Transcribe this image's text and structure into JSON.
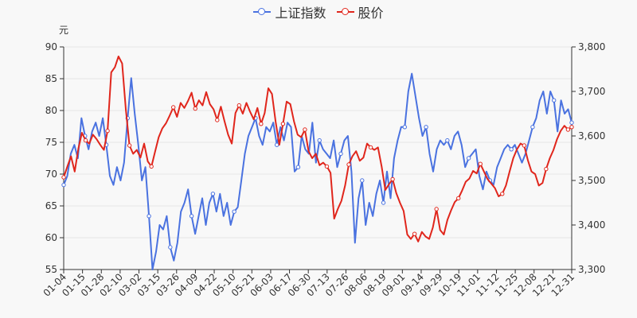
{
  "chart_data": {
    "type": "line",
    "unit_left": "元",
    "legend": [
      "上证指数",
      "股价"
    ],
    "colors": {
      "index": "#4a72e0",
      "price": "#e0261c",
      "axis": "#333333",
      "grid": "#e6e6e6",
      "text": "#333333"
    },
    "x_tick_labels": [
      "01-04",
      "01-15",
      "01-28",
      "02-10",
      "03-02",
      "03-15",
      "03-26",
      "04-09",
      "04-22",
      "05-10",
      "05-21",
      "06-03",
      "06-17",
      "06-30",
      "07-13",
      "07-26",
      "08-06",
      "08-19",
      "09-01",
      "09-14",
      "09-29",
      "10-19",
      "11-01",
      "11-12",
      "11-25",
      "12-08",
      "12-21",
      "12-31"
    ],
    "y_left": {
      "min": 55,
      "max": 90,
      "ticks": [
        55,
        60,
        65,
        70,
        75,
        80,
        85,
        90
      ]
    },
    "y_right": {
      "min": 3300,
      "max": 3800,
      "ticks": [
        "3,300",
        "3,400",
        "3,500",
        "3,600",
        "3,700",
        "3,800"
      ],
      "tick_values": [
        3300,
        3400,
        3500,
        3600,
        3700,
        3800
      ]
    },
    "series": [
      {
        "name": "上证指数",
        "axis": "right",
        "values": [
          3490,
          3510,
          3560,
          3580,
          3550,
          3640,
          3600,
          3570,
          3610,
          3630,
          3600,
          3640,
          3580,
          3510,
          3490,
          3530,
          3500,
          3540,
          3640,
          3730,
          3650,
          3580,
          3500,
          3530,
          3420,
          3300,
          3340,
          3400,
          3390,
          3420,
          3350,
          3320,
          3360,
          3430,
          3450,
          3480,
          3420,
          3380,
          3420,
          3460,
          3400,
          3450,
          3470,
          3430,
          3470,
          3420,
          3450,
          3400,
          3430,
          3440,
          3500,
          3560,
          3600,
          3620,
          3640,
          3600,
          3580,
          3620,
          3610,
          3630,
          3580,
          3620,
          3590,
          3630,
          3620,
          3520,
          3530,
          3600,
          3570,
          3560,
          3630,
          3540,
          3590,
          3570,
          3560,
          3550,
          3590,
          3530,
          3560,
          3590,
          3600,
          3520,
          3360,
          3460,
          3500,
          3400,
          3450,
          3420,
          3470,
          3500,
          3450,
          3520,
          3460,
          3550,
          3590,
          3620,
          3620,
          3700,
          3740,
          3690,
          3640,
          3600,
          3620,
          3560,
          3520,
          3570,
          3590,
          3580,
          3590,
          3570,
          3600,
          3610,
          3580,
          3530,
          3550,
          3560,
          3570,
          3510,
          3480,
          3520,
          3500,
          3490,
          3530,
          3550,
          3570,
          3580,
          3570,
          3580,
          3560,
          3540,
          3560,
          3590,
          3620,
          3640,
          3680,
          3700,
          3650,
          3700,
          3680,
          3610,
          3680,
          3650,
          3660,
          3630
        ]
      },
      {
        "name": "股价",
        "axis": "left",
        "values": [
          69.5,
          71.2,
          72.8,
          70.4,
          74.0,
          76.5,
          75.3,
          74.8,
          76.2,
          75.5,
          74.6,
          73.8,
          76.8,
          86.0,
          86.8,
          88.5,
          87.4,
          80.2,
          74.5,
          73.2,
          73.8,
          72.6,
          74.8,
          72.0,
          71.2,
          73.5,
          75.8,
          77.2,
          78.0,
          79.2,
          80.5,
          79.0,
          81.2,
          80.4,
          81.5,
          82.8,
          80.3,
          81.6,
          80.8,
          82.9,
          81.0,
          80.2,
          78.5,
          80.6,
          78.3,
          76.2,
          74.8,
          79.6,
          80.8,
          79.5,
          81.2,
          79.8,
          78.6,
          80.4,
          77.9,
          79.6,
          83.5,
          82.6,
          78.2,
          74.6,
          77.9,
          81.4,
          81.0,
          78.3,
          76.2,
          75.8,
          77.0,
          73.6,
          72.5,
          73.2,
          71.4,
          71.8,
          71.2,
          70.2,
          63.0,
          64.5,
          65.8,
          68.2,
          71.5,
          72.8,
          73.6,
          72.1,
          72.6,
          74.8,
          74.2,
          73.8,
          74.2,
          71.2,
          67.5,
          68.4,
          69.2,
          67.0,
          65.5,
          64.2,
          60.5,
          59.8,
          60.6,
          59.4,
          60.9,
          60.2,
          59.8,
          61.6,
          64.5,
          61.2,
          60.5,
          62.8,
          64.3,
          65.6,
          66.2,
          67.4,
          68.8,
          69.3,
          70.5,
          70.1,
          71.6,
          70.4,
          69.2,
          68.5,
          67.8,
          66.5,
          66.9,
          68.2,
          70.4,
          72.5,
          73.9,
          74.8,
          74.5,
          72.2,
          70.4,
          70.0,
          68.2,
          68.6,
          70.8,
          72.5,
          73.8,
          75.5,
          76.8,
          77.6,
          77.0,
          77.4
        ]
      }
    ]
  }
}
